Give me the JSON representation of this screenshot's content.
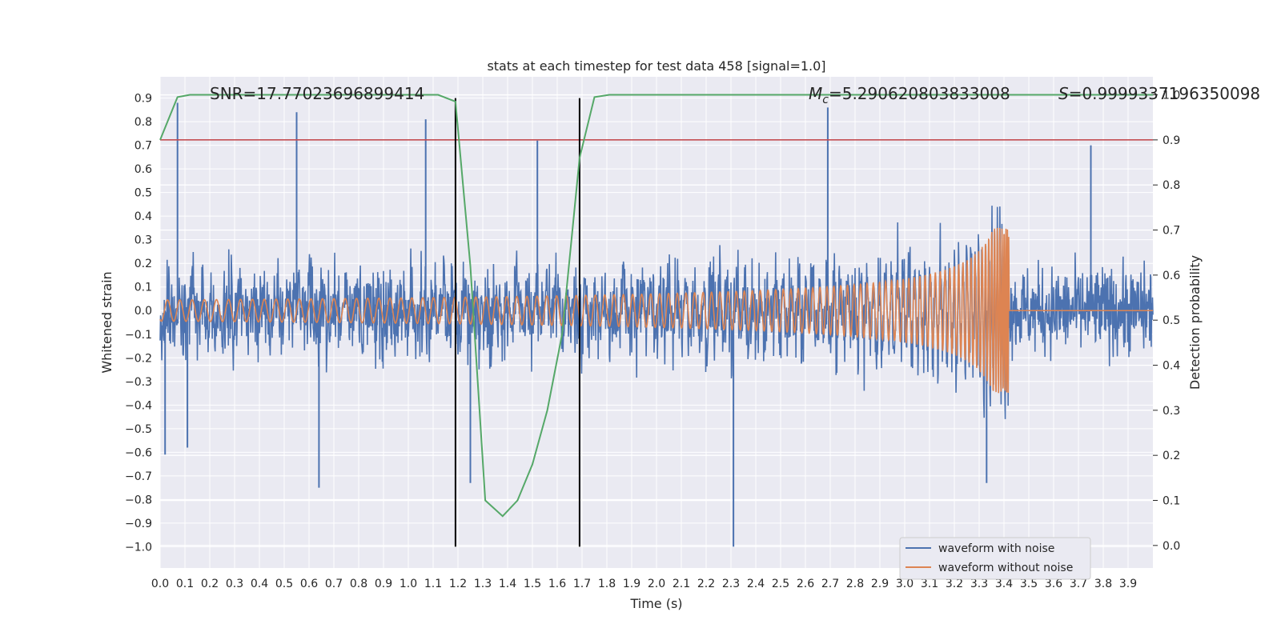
{
  "chart_data": {
    "type": "line",
    "title": "stats at each timestep for test data 458 [signal=1.0]",
    "xlabel": "Time (s)",
    "ylabel": "Whitened strain",
    "y2label": "Detection probability",
    "xlim": [
      0.0,
      4.0
    ],
    "ylim": [
      -1.09,
      0.99
    ],
    "y2lim": [
      -0.05,
      1.04
    ],
    "grid": true,
    "legend_position": "lower-right",
    "x_ticks": [
      "0.0",
      "0.1",
      "0.2",
      "0.3",
      "0.4",
      "0.5",
      "0.6",
      "0.7",
      "0.8",
      "0.9",
      "1.0",
      "1.1",
      "1.2",
      "1.3",
      "1.4",
      "1.5",
      "1.6",
      "1.7",
      "1.8",
      "1.9",
      "2.0",
      "2.1",
      "2.2",
      "2.3",
      "2.4",
      "2.5",
      "2.6",
      "2.7",
      "2.8",
      "2.9",
      "3.0",
      "3.1",
      "3.2",
      "3.3",
      "3.4",
      "3.5",
      "3.6",
      "3.7",
      "3.8",
      "3.9"
    ],
    "y_ticks": [
      "0.9",
      "0.8",
      "0.7",
      "0.6",
      "0.5",
      "0.4",
      "0.3",
      "0.2",
      "0.1",
      "0.0",
      "−0.1",
      "−0.2",
      "−0.3",
      "−0.4",
      "−0.5",
      "−0.6",
      "−0.7",
      "−0.8",
      "−0.9",
      "−1.0"
    ],
    "y2_ticks": [
      "1.0",
      "0.9",
      "0.8",
      "0.7",
      "0.6",
      "0.5",
      "0.4",
      "0.3",
      "0.2",
      "0.1",
      "0.0"
    ],
    "annotations": {
      "snr": "SNR=17.77023696899414",
      "mc_symbol": "M",
      "mc_sub": "c",
      "mc_value": "=5.290620803833008",
      "s_symbol": "S",
      "s_value": "=0.9999337196350098"
    },
    "series": [
      {
        "name": "waveform with noise",
        "color": "#4c72b0",
        "axis": "left",
        "description_level": "noise amplitude roughly ±0.35 with spikes",
        "spikes": [
          {
            "x": 0.07,
            "y": 0.88
          },
          {
            "x": 0.02,
            "y": -0.61
          },
          {
            "x": 0.11,
            "y": -0.58
          },
          {
            "x": 0.55,
            "y": 0.84
          },
          {
            "x": 0.64,
            "y": -0.75
          },
          {
            "x": 1.07,
            "y": 0.81
          },
          {
            "x": 1.25,
            "y": -0.73
          },
          {
            "x": 1.52,
            "y": 0.72
          },
          {
            "x": 2.31,
            "y": -1.0
          },
          {
            "x": 2.69,
            "y": 0.86
          },
          {
            "x": 3.75,
            "y": 0.7
          },
          {
            "x": 3.33,
            "y": -0.73
          }
        ]
      },
      {
        "name": "waveform without noise",
        "color": "#dd8452",
        "axis": "left",
        "chirp_start": 0.0,
        "chirp_end": 3.42,
        "start_amplitude": 0.045,
        "peak_amplitude": 0.35,
        "start_frequency_hz": 20
      },
      {
        "name": "detection probability",
        "color": "#55a868",
        "axis": "right",
        "x": [
          0.0,
          0.07,
          0.12,
          0.2,
          0.5,
          0.8,
          1.0,
          1.12,
          1.19,
          1.25,
          1.31,
          1.38,
          1.44,
          1.5,
          1.56,
          1.62,
          1.69,
          1.75,
          1.81,
          2.0,
          3.0,
          4.0
        ],
        "y": [
          0.9,
          0.995,
          1.0,
          1.0,
          1.0,
          1.0,
          1.0,
          1.0,
          0.985,
          0.62,
          0.1,
          0.065,
          0.1,
          0.18,
          0.3,
          0.47,
          0.86,
          0.995,
          1.0,
          1.0,
          1.0,
          1.0
        ]
      }
    ],
    "threshold_line": {
      "y2": 0.9,
      "color": "#c44e52"
    },
    "vertical_lines": [
      {
        "x": 1.19,
        "color": "#000000"
      },
      {
        "x": 1.69,
        "color": "#000000"
      }
    ],
    "legend": [
      {
        "label": "waveform with noise",
        "color": "#4c72b0"
      },
      {
        "label": "waveform without noise",
        "color": "#dd8452"
      }
    ]
  }
}
